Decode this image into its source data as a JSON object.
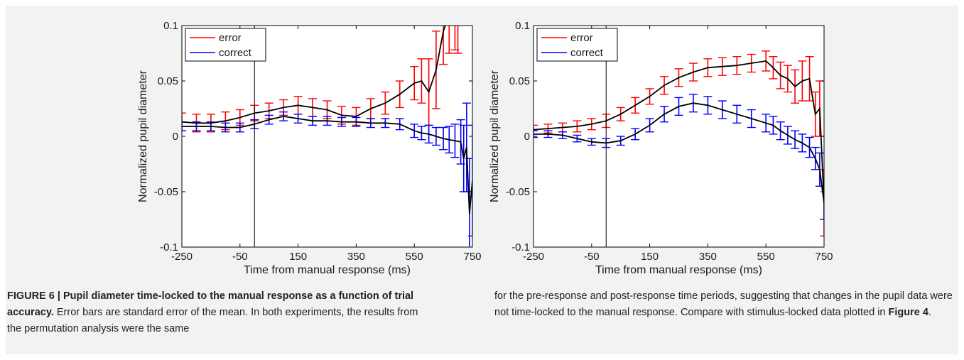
{
  "chart_data": [
    {
      "type": "line",
      "xlabel": "Time from manual response (ms)",
      "ylabel": "Normalized pupil diameter",
      "xlim": [
        -250,
        750
      ],
      "ylim": [
        -0.1,
        0.1
      ],
      "xticks": [
        -250,
        -50,
        150,
        350,
        550,
        750
      ],
      "yticks": [
        -0.1,
        -0.05,
        0,
        0.05,
        0.1
      ],
      "xtick_labels": [
        "-250",
        "-50",
        "150",
        "350",
        "550",
        "750"
      ],
      "ytick_labels": [
        "-0.1",
        "-0.05",
        "0",
        "0.05",
        "0.1"
      ],
      "vline_x": 0,
      "legend_position": "top-left",
      "grid": false,
      "error_bars": "standard error of the mean",
      "series": [
        {
          "name": "error",
          "color": "#ff0000",
          "x": [
            -250,
            -200,
            -150,
            -100,
            -50,
            0,
            50,
            100,
            150,
            200,
            250,
            300,
            350,
            400,
            450,
            500,
            550,
            575,
            600,
            625,
            650,
            670,
            690,
            700
          ],
          "y": [
            0.013,
            0.012,
            0.012,
            0.014,
            0.017,
            0.021,
            0.023,
            0.026,
            0.028,
            0.026,
            0.024,
            0.019,
            0.018,
            0.025,
            0.03,
            0.038,
            0.048,
            0.05,
            0.04,
            0.06,
            0.095,
            0.11,
            0.108,
            0.105
          ],
          "err": [
            0.008,
            0.008,
            0.008,
            0.008,
            0.007,
            0.007,
            0.007,
            0.007,
            0.008,
            0.008,
            0.008,
            0.008,
            0.008,
            0.009,
            0.01,
            0.012,
            0.015,
            0.02,
            0.03,
            0.035,
            0.03,
            0.035,
            0.03,
            0.03
          ]
        },
        {
          "name": "correct",
          "color": "#0000ff",
          "x": [
            -250,
            -200,
            -150,
            -100,
            -50,
            0,
            50,
            100,
            150,
            200,
            250,
            300,
            350,
            400,
            450,
            500,
            550,
            575,
            600,
            625,
            650,
            670,
            690,
            710,
            720,
            730,
            740,
            750
          ],
          "y": [
            0.009,
            0.009,
            0.009,
            0.008,
            0.008,
            0.011,
            0.015,
            0.018,
            0.016,
            0.014,
            0.014,
            0.013,
            0.013,
            0.012,
            0.012,
            0.011,
            0.005,
            0.003,
            0.002,
            0.0,
            -0.002,
            -0.003,
            -0.004,
            -0.005,
            -0.02,
            -0.01,
            -0.07,
            -0.04
          ],
          "err": [
            0.004,
            0.004,
            0.004,
            0.004,
            0.004,
            0.004,
            0.004,
            0.004,
            0.004,
            0.004,
            0.004,
            0.004,
            0.004,
            0.004,
            0.004,
            0.005,
            0.006,
            0.006,
            0.008,
            0.008,
            0.01,
            0.012,
            0.015,
            0.02,
            0.03,
            0.04,
            0.05,
            0.05
          ]
        }
      ]
    },
    {
      "type": "line",
      "xlabel": "Time from manual response (ms)",
      "ylabel": "Normalized pupil diameter",
      "xlim": [
        -250,
        750
      ],
      "ylim": [
        -0.1,
        0.1
      ],
      "xticks": [
        -250,
        -50,
        150,
        350,
        550,
        750
      ],
      "yticks": [
        -0.1,
        -0.05,
        0,
        0.05,
        0.1
      ],
      "xtick_labels": [
        "-250",
        "-50",
        "150",
        "350",
        "550",
        "750"
      ],
      "ytick_labels": [
        "-0.1",
        "-0.05",
        "0",
        "0.05",
        "0.1"
      ],
      "vline_x": 0,
      "legend_position": "top-left",
      "grid": false,
      "error_bars": "standard error of the mean",
      "series": [
        {
          "name": "error",
          "color": "#ff0000",
          "x": [
            -250,
            -200,
            -150,
            -100,
            -50,
            0,
            50,
            100,
            150,
            200,
            250,
            300,
            350,
            400,
            450,
            500,
            550,
            575,
            600,
            625,
            650,
            675,
            700,
            720,
            735,
            750
          ],
          "y": [
            0.006,
            0.007,
            0.008,
            0.009,
            0.011,
            0.014,
            0.02,
            0.028,
            0.036,
            0.046,
            0.053,
            0.058,
            0.062,
            0.063,
            0.064,
            0.066,
            0.068,
            0.062,
            0.055,
            0.052,
            0.045,
            0.05,
            0.052,
            0.02,
            0.025,
            -0.06
          ],
          "err": [
            0.004,
            0.004,
            0.004,
            0.005,
            0.005,
            0.006,
            0.006,
            0.007,
            0.007,
            0.008,
            0.008,
            0.008,
            0.008,
            0.008,
            0.008,
            0.008,
            0.009,
            0.01,
            0.012,
            0.012,
            0.015,
            0.018,
            0.02,
            0.02,
            0.025,
            0.03
          ]
        },
        {
          "name": "correct",
          "color": "#0000ff",
          "x": [
            -250,
            -200,
            -150,
            -100,
            -50,
            0,
            50,
            100,
            150,
            200,
            250,
            300,
            350,
            400,
            450,
            500,
            550,
            575,
            600,
            625,
            650,
            675,
            700,
            720,
            735,
            750
          ],
          "y": [
            0.002,
            0.002,
            0.001,
            -0.002,
            -0.005,
            -0.006,
            -0.004,
            0.002,
            0.01,
            0.02,
            0.027,
            0.03,
            0.028,
            0.024,
            0.02,
            0.016,
            0.012,
            0.01,
            0.005,
            0.001,
            -0.003,
            -0.006,
            -0.01,
            -0.02,
            -0.03,
            -0.06
          ],
          "err": [
            0.003,
            0.003,
            0.003,
            0.003,
            0.003,
            0.004,
            0.004,
            0.005,
            0.006,
            0.007,
            0.008,
            0.008,
            0.008,
            0.008,
            0.008,
            0.008,
            0.008,
            0.008,
            0.008,
            0.008,
            0.008,
            0.008,
            0.009,
            0.01,
            0.015,
            0.015
          ]
        }
      ]
    }
  ],
  "caption": {
    "figure_label": "FIGURE 6 | Pupil diameter time-locked to the manual response as a function of trial accuracy.",
    "left_text": " Error bars are standard error of the mean. In both experiments, the results from the permutation analysis were the same",
    "right_text_1": "for the pre-response and post-response time periods, suggesting that changes in the pupil data were not time-locked to the manual response. Compare with stimulus-locked data plotted in ",
    "right_figure_ref": "Figure 4",
    "right_text_2": "."
  }
}
